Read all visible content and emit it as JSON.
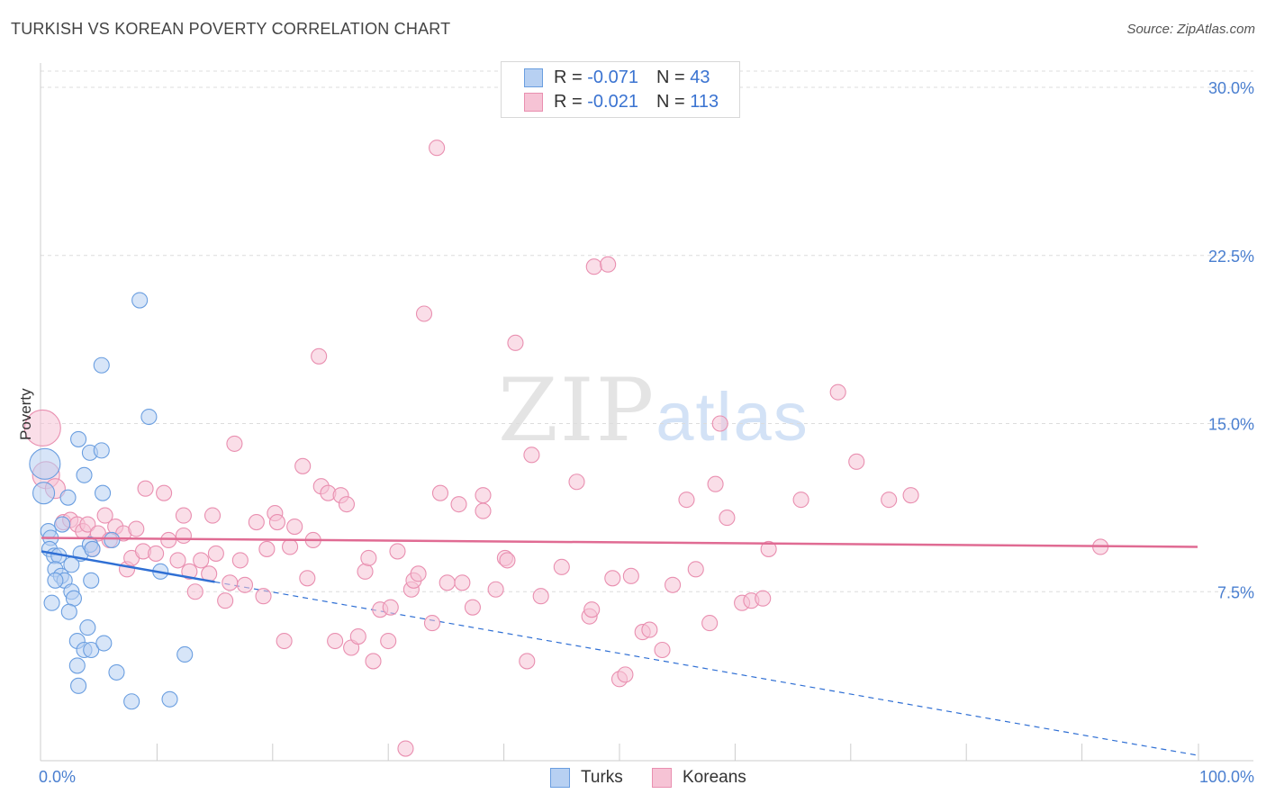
{
  "title": "TURKISH VS KOREAN POVERTY CORRELATION CHART",
  "source": "Source: ZipAtlas.com",
  "watermark": {
    "zip": "ZIP",
    "atlas": "atlas"
  },
  "colors": {
    "turks": "#6a9ee0",
    "turks_fill": "#b7d0f2",
    "koreans": "#e98fb0",
    "koreans_fill": "#f6c3d5",
    "turks_line": "#2f6fd4",
    "koreans_line": "#e06b93"
  },
  "legend": {
    "rows": [
      {
        "r_label": "R = ",
        "r_value": "-0.071",
        "n_label": "N = ",
        "n_value": "43"
      },
      {
        "r_label": "R = ",
        "r_value": "-0.021",
        "n_label": "N = ",
        "n_value": "113"
      }
    ]
  },
  "bottom_legend": [
    "Turks",
    "Koreans"
  ],
  "chart_data": {
    "type": "scatter",
    "title": "TURKISH VS KOREAN POVERTY CORRELATION CHART",
    "xlabel": "",
    "ylabel": "Poverty",
    "xlim": [
      0,
      100
    ],
    "ylim": [
      0,
      31
    ],
    "x_tick_labels": [
      "0.0%",
      "100.0%"
    ],
    "y_ticks": [
      7.5,
      15.0,
      22.5,
      30.0
    ],
    "y_tick_labels": [
      "7.5%",
      "15.0%",
      "22.5%",
      "30.0%"
    ],
    "grid": true,
    "legend_position": "top-center",
    "series": [
      {
        "name": "Turks",
        "r": -0.071,
        "n": 43,
        "trend": {
          "x0": 0,
          "y0": 9.3,
          "x1": 100,
          "y1": 0.2,
          "solid_until": 15
        },
        "points": [
          [
            0.3,
            13.2
          ],
          [
            0.2,
            11.9
          ],
          [
            0.6,
            10.2
          ],
          [
            0.8,
            9.9
          ],
          [
            0.7,
            9.4
          ],
          [
            1.1,
            9.1
          ],
          [
            1.5,
            9.1
          ],
          [
            1.2,
            8.5
          ],
          [
            1.7,
            8.2
          ],
          [
            2.0,
            8.0
          ],
          [
            1.2,
            8.0
          ],
          [
            0.9,
            7.0
          ],
          [
            1.8,
            10.5
          ],
          [
            2.3,
            11.7
          ],
          [
            3.4,
            9.2
          ],
          [
            2.6,
            8.7
          ],
          [
            2.6,
            7.5
          ],
          [
            2.8,
            7.2
          ],
          [
            2.4,
            6.6
          ],
          [
            4.2,
            9.6
          ],
          [
            4.4,
            9.4
          ],
          [
            4.3,
            8.0
          ],
          [
            3.2,
            14.3
          ],
          [
            4.2,
            13.7
          ],
          [
            3.7,
            12.7
          ],
          [
            5.2,
            13.8
          ],
          [
            5.3,
            11.9
          ],
          [
            5.2,
            17.6
          ],
          [
            6.1,
            9.8
          ],
          [
            8.5,
            20.5
          ],
          [
            9.3,
            15.3
          ],
          [
            10.3,
            8.4
          ],
          [
            4.0,
            5.9
          ],
          [
            3.1,
            5.3
          ],
          [
            3.7,
            4.9
          ],
          [
            4.3,
            4.9
          ],
          [
            5.4,
            5.2
          ],
          [
            3.1,
            4.2
          ],
          [
            3.2,
            3.3
          ],
          [
            6.5,
            3.9
          ],
          [
            7.8,
            2.6
          ],
          [
            11.1,
            2.7
          ],
          [
            12.4,
            4.7
          ]
        ]
      },
      {
        "name": "Koreans",
        "r": -0.021,
        "n": 113,
        "trend": {
          "x0": 0,
          "y0": 9.9,
          "x1": 100,
          "y1": 9.5
        },
        "points": [
          [
            0.1,
            14.8
          ],
          [
            0.4,
            12.7
          ],
          [
            1.2,
            12.1
          ],
          [
            1.9,
            10.6
          ],
          [
            2.5,
            10.7
          ],
          [
            3.1,
            10.5
          ],
          [
            3.6,
            10.2
          ],
          [
            4.0,
            10.5
          ],
          [
            4.4,
            9.4
          ],
          [
            4.9,
            10.1
          ],
          [
            5.5,
            10.9
          ],
          [
            5.9,
            9.8
          ],
          [
            6.4,
            10.4
          ],
          [
            7.1,
            10.1
          ],
          [
            7.4,
            8.5
          ],
          [
            7.8,
            9.0
          ],
          [
            8.2,
            10.3
          ],
          [
            8.8,
            9.3
          ],
          [
            9.0,
            12.1
          ],
          [
            9.9,
            9.2
          ],
          [
            10.6,
            11.9
          ],
          [
            11.0,
            9.8
          ],
          [
            11.8,
            8.9
          ],
          [
            12.3,
            10.9
          ],
          [
            12.3,
            10.0
          ],
          [
            12.8,
            8.4
          ],
          [
            13.3,
            7.5
          ],
          [
            13.8,
            8.9
          ],
          [
            14.5,
            8.3
          ],
          [
            14.8,
            10.9
          ],
          [
            15.1,
            9.2
          ],
          [
            15.9,
            7.1
          ],
          [
            16.3,
            7.9
          ],
          [
            16.7,
            14.1
          ],
          [
            17.2,
            8.9
          ],
          [
            17.6,
            7.8
          ],
          [
            18.6,
            10.6
          ],
          [
            19.2,
            7.3
          ],
          [
            19.5,
            9.4
          ],
          [
            20.2,
            11.0
          ],
          [
            20.4,
            10.6
          ],
          [
            21.0,
            5.3
          ],
          [
            21.5,
            9.5
          ],
          [
            21.9,
            10.4
          ],
          [
            22.6,
            13.1
          ],
          [
            23.0,
            8.1
          ],
          [
            23.5,
            9.8
          ],
          [
            24.0,
            18.0
          ],
          [
            24.2,
            12.2
          ],
          [
            24.8,
            11.9
          ],
          [
            25.4,
            5.3
          ],
          [
            25.9,
            11.8
          ],
          [
            26.4,
            11.4
          ],
          [
            26.8,
            5.0
          ],
          [
            27.4,
            5.5
          ],
          [
            28.0,
            8.4
          ],
          [
            28.3,
            9.0
          ],
          [
            28.7,
            4.4
          ],
          [
            29.3,
            6.7
          ],
          [
            30.0,
            5.3
          ],
          [
            30.2,
            6.8
          ],
          [
            30.8,
            9.3
          ],
          [
            31.5,
            0.5
          ],
          [
            32.0,
            7.6
          ],
          [
            32.2,
            8.0
          ],
          [
            32.6,
            8.3
          ],
          [
            33.1,
            19.9
          ],
          [
            33.8,
            6.1
          ],
          [
            34.2,
            27.3
          ],
          [
            34.5,
            11.9
          ],
          [
            35.1,
            7.9
          ],
          [
            36.1,
            11.4
          ],
          [
            36.4,
            7.9
          ],
          [
            37.3,
            6.8
          ],
          [
            38.2,
            11.8
          ],
          [
            38.2,
            11.1
          ],
          [
            39.3,
            7.6
          ],
          [
            40.1,
            9.0
          ],
          [
            40.3,
            8.9
          ],
          [
            41.0,
            18.6
          ],
          [
            42.0,
            4.4
          ],
          [
            42.4,
            13.6
          ],
          [
            43.2,
            7.3
          ],
          [
            45.0,
            8.6
          ],
          [
            46.3,
            12.4
          ],
          [
            47.4,
            6.4
          ],
          [
            47.6,
            6.7
          ],
          [
            47.8,
            22.0
          ],
          [
            49.0,
            22.1
          ],
          [
            49.4,
            8.1
          ],
          [
            50.0,
            3.6
          ],
          [
            50.5,
            3.8
          ],
          [
            51.0,
            8.2
          ],
          [
            52.0,
            5.7
          ],
          [
            52.6,
            5.8
          ],
          [
            53.7,
            4.9
          ],
          [
            54.6,
            7.8
          ],
          [
            55.8,
            11.6
          ],
          [
            56.6,
            8.5
          ],
          [
            57.8,
            6.1
          ],
          [
            58.3,
            12.3
          ],
          [
            58.7,
            15.0
          ],
          [
            59.3,
            10.8
          ],
          [
            60.6,
            7.0
          ],
          [
            61.4,
            7.1
          ],
          [
            62.4,
            7.2
          ],
          [
            62.9,
            9.4
          ],
          [
            65.7,
            11.6
          ],
          [
            68.9,
            16.4
          ],
          [
            70.5,
            13.3
          ],
          [
            73.3,
            11.6
          ],
          [
            75.2,
            11.8
          ],
          [
            91.6,
            9.5
          ]
        ]
      }
    ]
  }
}
